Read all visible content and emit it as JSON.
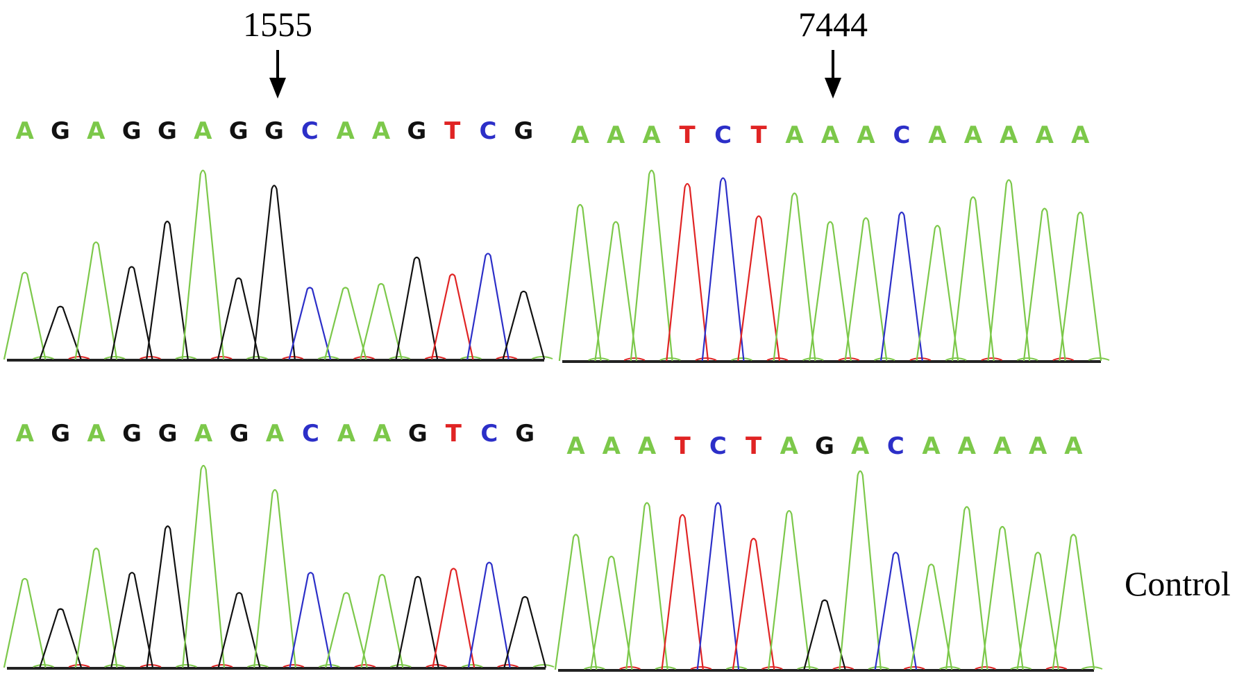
{
  "colors": {
    "A": "#7cc84a",
    "C": "#2c2fc8",
    "G": "#111111",
    "T": "#e02424",
    "baseline": "#222222"
  },
  "panels": [
    {
      "id": "top-left",
      "position_label": "1555",
      "bases": [
        "A",
        "G",
        "A",
        "G",
        "G",
        "A",
        "G",
        "G",
        "C",
        "A",
        "A",
        "G",
        "T",
        "C",
        "G"
      ],
      "peak_heights": [
        0.46,
        0.28,
        0.62,
        0.49,
        0.73,
        1.0,
        0.43,
        0.92,
        0.38,
        0.38,
        0.4,
        0.54,
        0.45,
        0.56,
        0.36
      ]
    },
    {
      "id": "top-right",
      "position_label": "7444",
      "bases": [
        "A",
        "A",
        "A",
        "T",
        "C",
        "T",
        "A",
        "A",
        "A",
        "C",
        "A",
        "A",
        "A",
        "A",
        "A"
      ],
      "peak_heights": [
        0.82,
        0.73,
        1.0,
        0.93,
        0.96,
        0.76,
        0.88,
        0.73,
        0.75,
        0.78,
        0.71,
        0.86,
        0.95,
        0.8,
        0.78
      ]
    },
    {
      "id": "bottom-left",
      "position_label": "",
      "bases": [
        "A",
        "G",
        "A",
        "G",
        "G",
        "A",
        "G",
        "A",
        "C",
        "A",
        "A",
        "G",
        "T",
        "C",
        "G"
      ],
      "peak_heights": [
        0.44,
        0.29,
        0.59,
        0.47,
        0.7,
        1.0,
        0.37,
        0.88,
        0.47,
        0.37,
        0.46,
        0.45,
        0.49,
        0.52,
        0.35
      ]
    },
    {
      "id": "bottom-right",
      "position_label": "",
      "bases": [
        "A",
        "A",
        "A",
        "T",
        "C",
        "T",
        "A",
        "G",
        "A",
        "C",
        "A",
        "A",
        "A",
        "A",
        "A"
      ],
      "peak_heights": [
        0.68,
        0.57,
        0.84,
        0.78,
        0.84,
        0.66,
        0.8,
        0.35,
        1.0,
        0.59,
        0.53,
        0.82,
        0.72,
        0.59,
        0.68
      ]
    }
  ],
  "control_label": "Control"
}
